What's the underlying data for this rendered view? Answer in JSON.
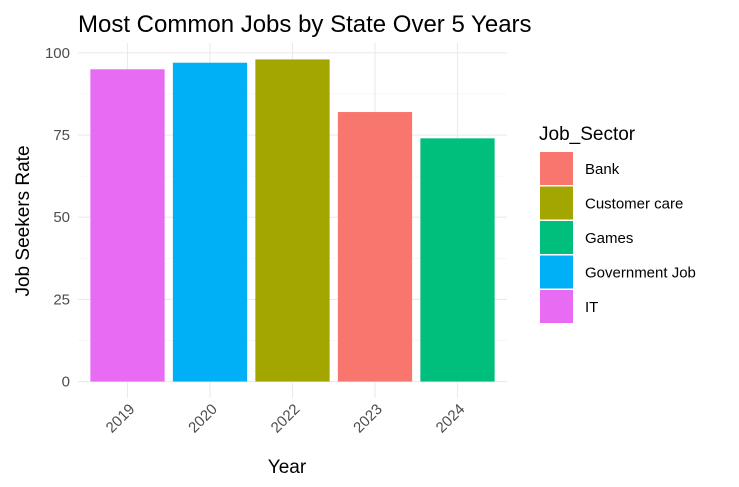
{
  "chart_data": {
    "type": "bar",
    "title": "Most Common Jobs by State Over 5 Years",
    "xlabel": "Year",
    "ylabel": "Job Seekers Rate",
    "categories": [
      "2019",
      "2020",
      "2022",
      "2023",
      "2024"
    ],
    "values": [
      95,
      97,
      98,
      82,
      74
    ],
    "bar_sector": [
      "IT",
      "Government Job",
      "Customer care",
      "Bank",
      "Games"
    ],
    "ylim": [
      0,
      100
    ],
    "yticks": [
      0,
      25,
      50,
      75,
      100
    ],
    "grid": true,
    "legend": {
      "title": "Job_Sector",
      "placement": "right",
      "entries": [
        {
          "label": "Bank",
          "color": "#F8766D"
        },
        {
          "label": "Customer care",
          "color": "#A3A500"
        },
        {
          "label": "Games",
          "color": "#00BF7D"
        },
        {
          "label": "Government Job",
          "color": "#00B0F6"
        },
        {
          "label": "IT",
          "color": "#E76BF3"
        }
      ]
    }
  }
}
